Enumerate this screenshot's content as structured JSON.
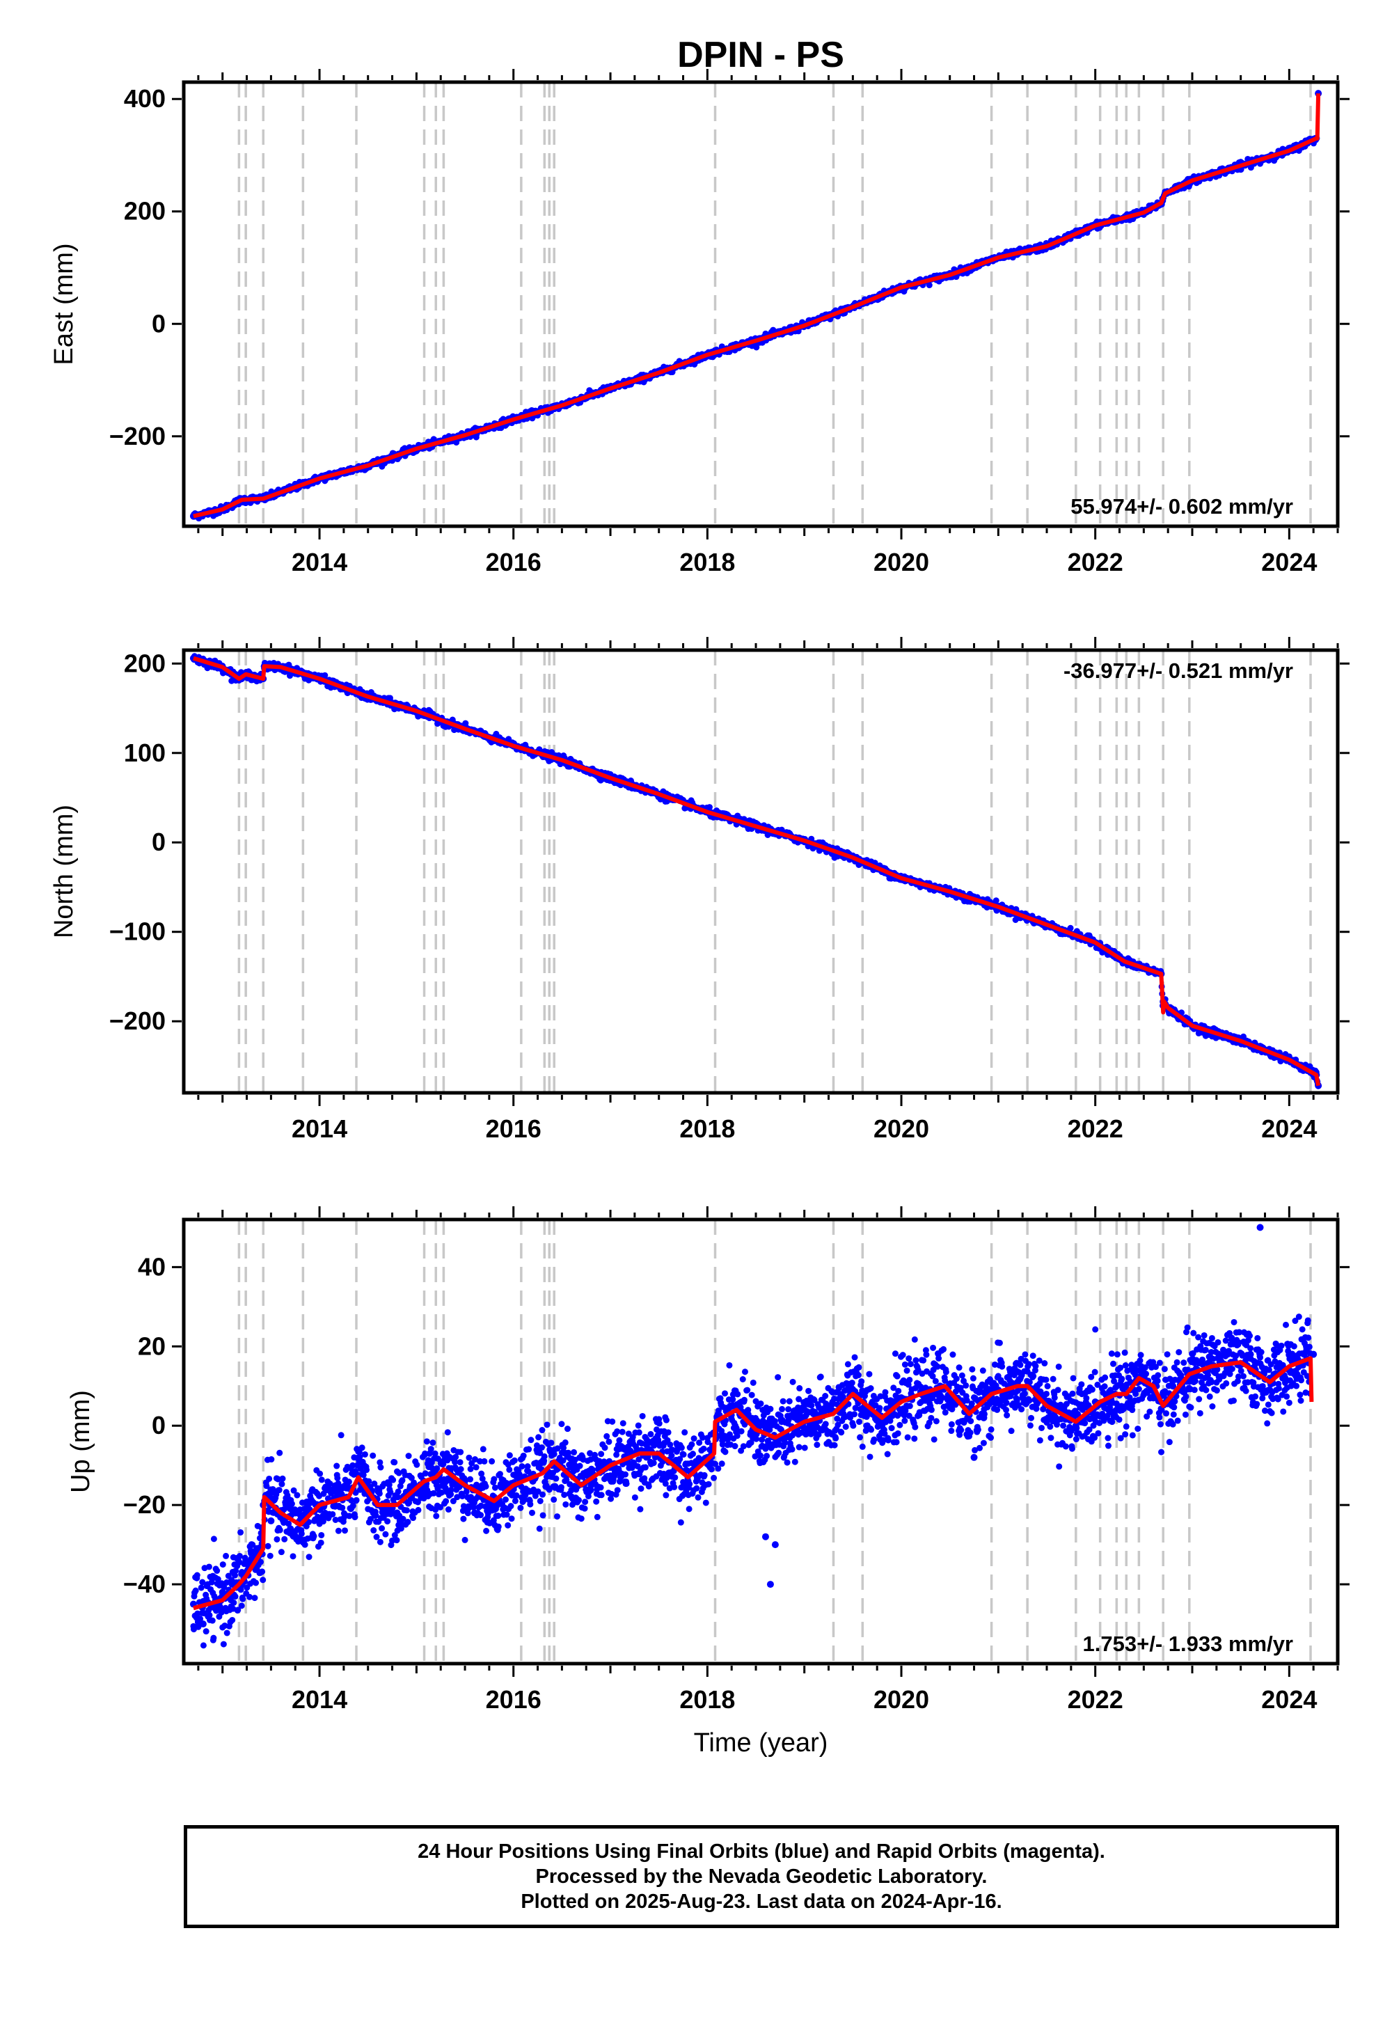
{
  "title": "DPIN - PS",
  "xlabel": "Time (year)",
  "colors": {
    "final_orbit_points": "#0000ff",
    "model_line": "#ff0000",
    "offset_lines": "#c8c8c8",
    "frame": "#000000"
  },
  "footer": {
    "line1": "24 Hour Positions Using Final Orbits (blue) and Rapid Orbits (magenta).",
    "line2": "Processed by the Nevada Geodetic Laboratory.",
    "line3": "Plotted on 2025-Aug-23. Last data on 2024-Apr-16."
  },
  "chart_data": [
    {
      "type": "scatter",
      "ylabel": "East (mm)",
      "rate_label": "55.974+/- 0.602 mm/yr",
      "rate_position": "bottom-right",
      "xlim": [
        2012.6,
        2024.5
      ],
      "ylim": [
        -360,
        430
      ],
      "xticks": [
        2014,
        2016,
        2018,
        2020,
        2022,
        2024
      ],
      "yticks": [
        -200,
        0,
        200,
        400
      ],
      "grid": false,
      "offset_epochs": [
        2013.17,
        2013.24,
        2013.42,
        2013.83,
        2014.38,
        2015.08,
        2015.2,
        2015.28,
        2016.08,
        2016.32,
        2016.37,
        2016.42,
        2018.08,
        2019.3,
        2019.6,
        2020.93,
        2021.3,
        2021.8,
        2022.05,
        2022.22,
        2022.32,
        2022.45,
        2022.7,
        2022.97,
        2024.22
      ],
      "series": [
        {
          "name": "Final Orbits",
          "style": "points",
          "x": [
            2012.7,
            2013.0,
            2013.2,
            2013.42,
            2014.0,
            2014.5,
            2015.0,
            2015.5,
            2016.0,
            2016.5,
            2017.0,
            2017.5,
            2018.0,
            2018.5,
            2019.0,
            2019.5,
            2020.0,
            2020.5,
            2021.0,
            2021.5,
            2022.0,
            2022.5,
            2022.68,
            2022.72,
            2023.0,
            2023.5,
            2024.0,
            2024.28,
            2024.3
          ],
          "y": [
            -342,
            -330,
            -313,
            -311,
            -275,
            -252,
            -222,
            -198,
            -170,
            -145,
            -115,
            -87,
            -55,
            -30,
            -3,
            30,
            65,
            87,
            118,
            138,
            175,
            198,
            215,
            232,
            255,
            275,
            308,
            330,
            410
          ]
        },
        {
          "name": "Model",
          "style": "line",
          "x": [
            2012.7,
            2013.0,
            2013.2,
            2013.42,
            2014.0,
            2014.5,
            2015.0,
            2015.5,
            2016.0,
            2016.5,
            2017.0,
            2017.5,
            2018.0,
            2018.5,
            2019.0,
            2019.5,
            2020.0,
            2020.5,
            2021.0,
            2021.5,
            2022.0,
            2022.5,
            2022.68,
            2022.72,
            2023.0,
            2024.0,
            2024.28,
            2024.29,
            2024.3
          ],
          "y": [
            -342,
            -330,
            -313,
            -311,
            -275,
            -252,
            -222,
            -198,
            -170,
            -145,
            -115,
            -87,
            -55,
            -30,
            -3,
            30,
            65,
            87,
            118,
            138,
            175,
            198,
            215,
            232,
            255,
            308,
            330,
            330,
            410
          ]
        }
      ]
    },
    {
      "type": "scatter",
      "ylabel": "North (mm)",
      "rate_label": "-36.977+/- 0.521 mm/yr",
      "rate_position": "top-right",
      "xlim": [
        2012.6,
        2024.5
      ],
      "ylim": [
        -280,
        215
      ],
      "xticks": [
        2014,
        2016,
        2018,
        2020,
        2022,
        2024
      ],
      "yticks": [
        -200,
        -100,
        0,
        100,
        200
      ],
      "grid": false,
      "offset_epochs": [
        2013.17,
        2013.24,
        2013.42,
        2013.83,
        2014.38,
        2015.08,
        2015.2,
        2015.28,
        2016.08,
        2016.32,
        2016.37,
        2016.42,
        2018.08,
        2019.3,
        2019.6,
        2020.93,
        2021.3,
        2021.8,
        2022.05,
        2022.22,
        2022.32,
        2022.45,
        2022.7,
        2022.97,
        2024.22
      ],
      "series": [
        {
          "name": "Final Orbits",
          "style": "points",
          "x": [
            2012.7,
            2013.0,
            2013.17,
            2013.24,
            2013.42,
            2013.43,
            2013.6,
            2014.0,
            2014.5,
            2015.0,
            2015.5,
            2016.0,
            2016.5,
            2017.0,
            2017.5,
            2018.0,
            2018.5,
            2019.0,
            2019.5,
            2020.0,
            2020.5,
            2021.0,
            2021.5,
            2022.0,
            2022.3,
            2022.68,
            2022.7,
            2022.75,
            2023.0,
            2023.5,
            2024.0,
            2024.28,
            2024.3
          ],
          "y": [
            206,
            196,
            183,
            188,
            183,
            197,
            196,
            183,
            163,
            147,
            127,
            108,
            92,
            72,
            54,
            34,
            18,
            2,
            -17,
            -40,
            -55,
            -72,
            -92,
            -112,
            -133,
            -147,
            -178,
            -185,
            -205,
            -222,
            -243,
            -260,
            -272
          ]
        },
        {
          "name": "Model",
          "style": "line",
          "x": [
            2012.7,
            2013.0,
            2013.17,
            2013.24,
            2013.42,
            2013.43,
            2013.6,
            2014.0,
            2014.5,
            2015.0,
            2015.5,
            2016.0,
            2016.5,
            2017.0,
            2017.5,
            2018.0,
            2018.5,
            2019.0,
            2019.5,
            2020.0,
            2020.5,
            2021.0,
            2021.5,
            2022.0,
            2022.3,
            2022.68,
            2022.7,
            2022.71,
            2022.75,
            2023.0,
            2023.5,
            2024.0,
            2024.28,
            2024.3
          ],
          "y": [
            206,
            196,
            183,
            188,
            183,
            197,
            196,
            183,
            163,
            147,
            127,
            108,
            92,
            72,
            54,
            34,
            18,
            2,
            -17,
            -40,
            -55,
            -72,
            -92,
            -112,
            -133,
            -147,
            -190,
            -178,
            -185,
            -205,
            -222,
            -243,
            -260,
            -272
          ]
        }
      ]
    },
    {
      "type": "scatter",
      "ylabel": "Up (mm)",
      "rate_label": "1.753+/- 1.933 mm/yr",
      "rate_position": "bottom-right",
      "xlim": [
        2012.6,
        2024.5
      ],
      "ylim": [
        -60,
        52
      ],
      "xticks": [
        2014,
        2016,
        2018,
        2020,
        2022,
        2024
      ],
      "yticks": [
        -40,
        -20,
        0,
        20,
        40
      ],
      "grid": false,
      "offset_epochs": [
        2013.17,
        2013.24,
        2013.42,
        2013.83,
        2014.38,
        2015.08,
        2015.2,
        2015.28,
        2016.08,
        2016.32,
        2016.37,
        2016.42,
        2018.08,
        2019.3,
        2019.6,
        2020.93,
        2021.3,
        2021.8,
        2022.05,
        2022.22,
        2022.32,
        2022.45,
        2022.7,
        2022.97,
        2024.22
      ],
      "series": [
        {
          "name": "Final Orbits",
          "style": "points",
          "x": [
            2012.7,
            2012.8,
            2012.9,
            2013.0,
            2013.1,
            2013.2,
            2013.3,
            2013.42,
            2013.5,
            2013.7,
            2013.85,
            2014.0,
            2014.2,
            2014.4,
            2014.6,
            2014.8,
            2015.0,
            2015.2,
            2015.4,
            2015.6,
            2015.8,
            2016.0,
            2016.2,
            2016.4,
            2016.6,
            2016.8,
            2017.0,
            2017.2,
            2017.4,
            2017.6,
            2017.8,
            2018.0,
            2018.1,
            2018.3,
            2018.5,
            2018.6,
            2018.65,
            2018.7,
            2018.8,
            2019.0,
            2019.2,
            2019.4,
            2019.6,
            2019.8,
            2020.0,
            2020.2,
            2020.4,
            2020.6,
            2020.75,
            2020.85,
            2021.0,
            2021.2,
            2021.4,
            2021.6,
            2021.8,
            2022.0,
            2022.2,
            2022.4,
            2022.6,
            2022.8,
            2023.0,
            2023.2,
            2023.4,
            2023.6,
            2023.7,
            2023.8,
            2024.0,
            2024.2,
            2024.25
          ],
          "y": [
            -45,
            -50,
            -38,
            -42,
            -40,
            -37,
            -30,
            -20,
            -24,
            -26,
            -23,
            -20,
            -18,
            -14,
            -20,
            -22,
            -16,
            -12,
            -14,
            -22,
            -18,
            -16,
            -14,
            -10,
            -18,
            -15,
            -10,
            -8,
            -6,
            -12,
            -14,
            -8,
            2,
            4,
            -2,
            -28,
            -40,
            -30,
            -3,
            2,
            3,
            6,
            4,
            0,
            7,
            8,
            10,
            6,
            -8,
            2,
            9,
            11,
            10,
            5,
            0,
            6,
            8,
            9,
            7,
            10,
            13,
            15,
            16,
            18,
            50,
            12,
            14,
            16,
            18
          ]
        },
        {
          "name": "Model",
          "style": "line",
          "x": [
            2012.7,
            2013.0,
            2013.17,
            2013.24,
            2013.42,
            2013.43,
            2013.6,
            2013.8,
            2014.0,
            2014.3,
            2014.4,
            2014.6,
            2014.8,
            2015.08,
            2015.2,
            2015.28,
            2015.5,
            2015.8,
            2016.0,
            2016.3,
            2016.42,
            2016.7,
            2017.0,
            2017.3,
            2017.5,
            2017.8,
            2018.07,
            2018.08,
            2018.3,
            2018.5,
            2018.7,
            2019.0,
            2019.3,
            2019.5,
            2019.8,
            2020.0,
            2020.2,
            2020.45,
            2020.7,
            2020.93,
            2021.2,
            2021.3,
            2021.5,
            2021.8,
            2022.05,
            2022.22,
            2022.32,
            2022.45,
            2022.6,
            2022.7,
            2022.97,
            2023.2,
            2023.5,
            2023.8,
            2024.0,
            2024.22,
            2024.23
          ],
          "y": [
            -46,
            -44,
            -40,
            -38,
            -31,
            -18,
            -22,
            -25,
            -20,
            -18,
            -13,
            -20,
            -20,
            -14,
            -13,
            -11,
            -15,
            -19,
            -15,
            -12,
            -9,
            -15,
            -10,
            -7,
            -7,
            -13,
            -7,
            1,
            4,
            -1,
            -3,
            1,
            3,
            8,
            2,
            6,
            8,
            10,
            3,
            8,
            10,
            10,
            5,
            1,
            6,
            8,
            8,
            12,
            10,
            5,
            13,
            15,
            16,
            11,
            15,
            17,
            6
          ]
        }
      ]
    }
  ]
}
